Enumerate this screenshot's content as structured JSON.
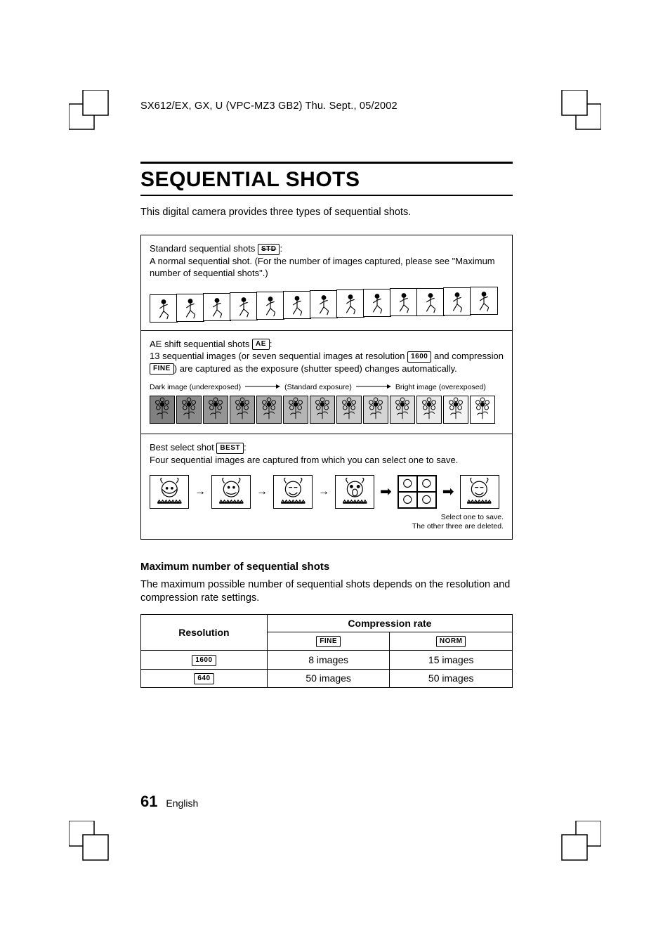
{
  "header": {
    "text": "SX612/EX, GX, U (VPC-MZ3 GB2)    Thu. Sept., 05/2002"
  },
  "title": "SEQUENTIAL SHOTS",
  "intro": "This digital camera provides three types of sequential shots.",
  "modes": {
    "standard": {
      "label": "Standard sequential shots ",
      "badge": "STD",
      "suffix": ":",
      "desc": "A normal sequential shot. (For the number of images captured, please see \"Maximum number of sequential shots\".)",
      "frame_count": 13
    },
    "ae": {
      "label": "AE shift sequential shots ",
      "badge": "AE",
      "suffix": ":",
      "desc_pre": "13 sequential images (or seven sequential images at resolution ",
      "res_badge": "1600",
      "desc_mid": " and compression ",
      "comp_badge": "FINE",
      "desc_post": ") are captured as the exposure (shutter speed) changes automatically.",
      "labels": {
        "dark": "Dark image (underexposed)",
        "mid": "(Standard exposure)",
        "bright": "Bright image (overexposed)"
      },
      "frame_count": 13,
      "shade_hex_dark": "#808080",
      "shade_hex_light": "#ffffff"
    },
    "best": {
      "label": "Best select shot ",
      "badge": "BEST",
      "suffix": ":",
      "desc": "Four sequential images are captured from which you can select one to save.",
      "note_line1": "Select one to save.",
      "note_line2": "The other three are deleted."
    }
  },
  "max_section": {
    "heading": "Maximum number of sequential shots",
    "text": "The maximum possible number of sequential shots depends on the resolution and compression rate settings."
  },
  "table": {
    "col_resolution": "Resolution",
    "col_compression": "Compression rate",
    "badges": {
      "fine": "FINE",
      "norm": "NORM",
      "r1600": "1600",
      "r640": "640"
    },
    "rows": [
      {
        "res_badge": "1600",
        "fine": "8 images",
        "norm": "15 images"
      },
      {
        "res_badge": "640",
        "fine": "50 images",
        "norm": "50 images"
      }
    ]
  },
  "footer": {
    "page": "61",
    "lang": "English"
  },
  "colors": {
    "text": "#000000",
    "bg": "#ffffff",
    "rule": "#000000",
    "border": "#000000"
  }
}
